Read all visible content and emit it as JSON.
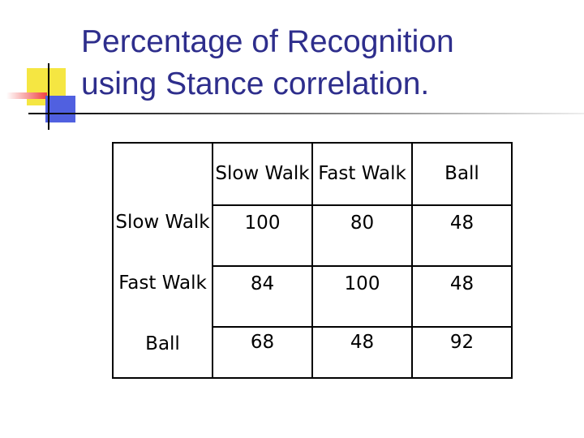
{
  "title": "Percentage of Recognition using Stance correlation.",
  "table": {
    "columns": [
      "Slow Walk",
      "Fast Walk",
      "Ball"
    ],
    "rows": [
      {
        "label": "Slow Walk",
        "values": [
          100,
          80,
          48
        ]
      },
      {
        "label": "Fast Walk",
        "values": [
          84,
          100,
          48
        ]
      },
      {
        "label": "Ball",
        "values": [
          68,
          48,
          92
        ]
      }
    ]
  }
}
